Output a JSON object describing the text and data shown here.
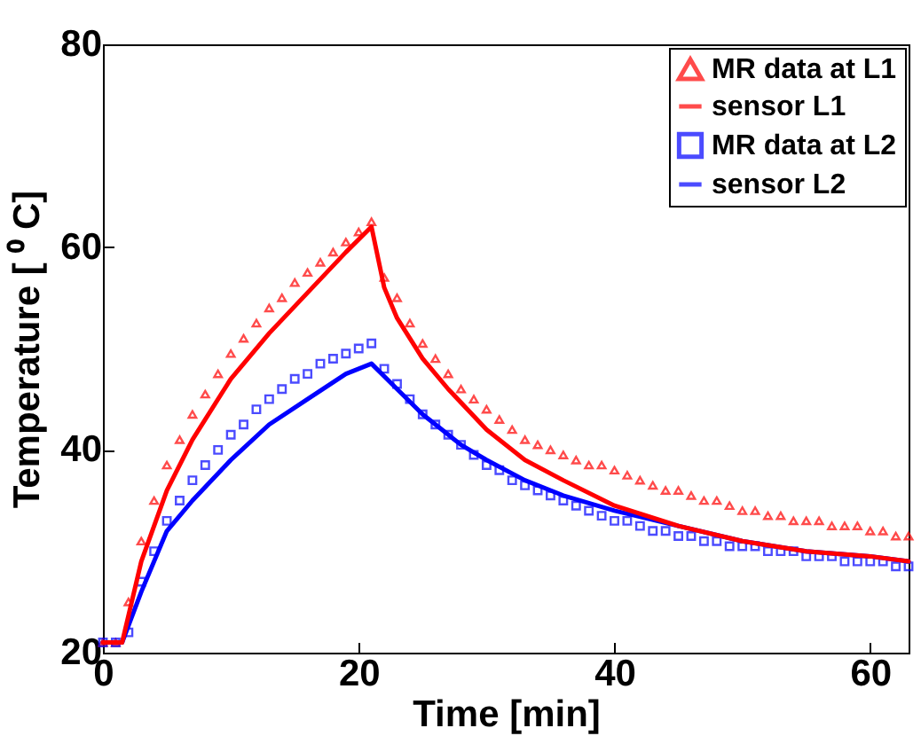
{
  "chart_data": {
    "type": "scatter",
    "xlabel": "Time [min]",
    "ylabel": "Temperature [ ⁰ C]",
    "xlim": [
      0,
      63
    ],
    "ylim": [
      20,
      80
    ],
    "xticks": [
      0,
      20,
      40,
      60
    ],
    "yticks": [
      20,
      40,
      60,
      80
    ],
    "grid": false,
    "legend": "top right",
    "series": [
      {
        "name": "MR data at L1",
        "marker": "triangle",
        "color": "#ff0000",
        "x": [
          0,
          1,
          2,
          3,
          4,
          5,
          6,
          7,
          8,
          9,
          10,
          11,
          12,
          13,
          14,
          15,
          16,
          17,
          18,
          19,
          20,
          21,
          22,
          23,
          24,
          25,
          26,
          27,
          28,
          29,
          30,
          31,
          32,
          33,
          34,
          35,
          36,
          37,
          38,
          39,
          40,
          41,
          42,
          43,
          44,
          45,
          46,
          47,
          48,
          49,
          50,
          51,
          52,
          53,
          54,
          55,
          56,
          57,
          58,
          59,
          60,
          61,
          62,
          63
        ],
        "values": [
          21,
          21,
          25,
          31,
          35,
          38.5,
          41,
          43.5,
          45.5,
          47.5,
          49.5,
          51,
          52.5,
          54,
          55,
          56.5,
          57.5,
          58.5,
          59.5,
          60.5,
          61.5,
          62.5,
          57,
          55,
          52.5,
          50.5,
          49,
          47.5,
          46,
          45,
          44,
          43,
          42,
          41,
          40.5,
          40,
          39.5,
          39,
          38.5,
          38.5,
          38,
          37.5,
          37,
          36.5,
          36,
          36,
          35.5,
          35,
          35,
          34.5,
          34,
          34,
          33.5,
          33.5,
          33,
          33,
          33,
          32.5,
          32.5,
          32.5,
          32,
          32,
          31.5,
          31.5
        ]
      },
      {
        "name": "sensor L1",
        "type": "line",
        "marker": "none",
        "color": "#ff0000",
        "x": [
          0,
          1.5,
          3,
          5,
          7,
          10,
          13,
          16,
          19,
          21,
          22,
          23,
          25,
          27,
          30,
          33,
          36,
          40,
          45,
          50,
          55,
          60,
          63
        ],
        "values": [
          21,
          21,
          29,
          36,
          41,
          47,
          51.5,
          55.5,
          59.5,
          62,
          56,
          53,
          49,
          46,
          42,
          39,
          37,
          34.5,
          32.5,
          31,
          30,
          29.5,
          29
        ]
      },
      {
        "name": "MR data at L2",
        "marker": "square",
        "color": "#0000ff",
        "x": [
          0,
          1,
          2,
          3,
          4,
          5,
          6,
          7,
          8,
          9,
          10,
          11,
          12,
          13,
          14,
          15,
          16,
          17,
          18,
          19,
          20,
          21,
          22,
          23,
          24,
          25,
          26,
          27,
          28,
          29,
          30,
          31,
          32,
          33,
          34,
          35,
          36,
          37,
          38,
          39,
          40,
          41,
          42,
          43,
          44,
          45,
          46,
          47,
          48,
          49,
          50,
          51,
          52,
          53,
          54,
          55,
          56,
          57,
          58,
          59,
          60,
          61,
          62,
          63
        ],
        "values": [
          21,
          21,
          22,
          27,
          30,
          33,
          35,
          37,
          38.5,
          40,
          41.5,
          42.5,
          44,
          45,
          46,
          47,
          47.5,
          48.5,
          49,
          49.5,
          50,
          50.5,
          48,
          46.5,
          45,
          43.5,
          42.5,
          41.5,
          40.5,
          39.5,
          38.5,
          38,
          37,
          36.5,
          36,
          35.5,
          35,
          34.5,
          34,
          33.5,
          33,
          33,
          32.5,
          32,
          32,
          31.5,
          31.5,
          31,
          31,
          30.5,
          30.5,
          30.5,
          30,
          30,
          30,
          29.5,
          29.5,
          29.5,
          29,
          29,
          29,
          29,
          28.5,
          28.5
        ]
      },
      {
        "name": "sensor L2",
        "type": "line",
        "marker": "none",
        "color": "#0000ff",
        "x": [
          0,
          1.5,
          3,
          5,
          7,
          10,
          13,
          16,
          19,
          21,
          23,
          25,
          28,
          30,
          33,
          36,
          40,
          45,
          50,
          55,
          60,
          63
        ],
        "values": [
          21,
          21,
          26,
          32,
          35,
          39,
          42.5,
          45,
          47.5,
          48.5,
          46,
          43.5,
          40.5,
          39,
          37,
          35.5,
          34,
          32.5,
          31,
          30,
          29.5,
          29
        ]
      }
    ]
  }
}
